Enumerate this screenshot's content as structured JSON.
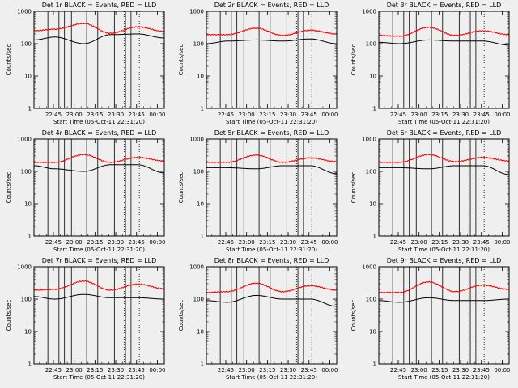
{
  "chart_data": [
    {
      "type": "line",
      "title": "Det 1r  BLACK = Events, RED = LLD",
      "ylabel": "Counts/sec",
      "xlabel": "Start Time (05-Oct-11 22:31:20)",
      "x_ticks": [
        "22:45",
        "23:00",
        "23:15",
        "23:30",
        "23:45",
        "00:00"
      ],
      "y_ticks": [
        "1",
        "10",
        "100",
        "1000"
      ],
      "ylim": [
        1,
        1000
      ],
      "y_scale": "log",
      "series": [
        {
          "name": "Events",
          "color": "#000000",
          "level": [
            130,
            160,
            100,
            190,
            200,
            150
          ]
        },
        {
          "name": "LLD",
          "color": "#ff0000",
          "level": [
            250,
            280,
            420,
            210,
            330,
            240
          ]
        }
      ]
    },
    {
      "type": "line",
      "title": "Det 2r  BLACK = Events, RED = LLD",
      "ylabel": "Counts/sec",
      "xlabel": "Start Time (05-Oct-11 22:31:20)",
      "x_ticks": [
        "22:45",
        "23:00",
        "23:15",
        "23:30",
        "23:45",
        "00:00"
      ],
      "y_ticks": [
        "1",
        "10",
        "100",
        "1000"
      ],
      "ylim": [
        1,
        1000
      ],
      "y_scale": "log",
      "series": [
        {
          "name": "Events",
          "color": "#000000",
          "level": [
            100,
            120,
            130,
            120,
            140,
            100
          ]
        },
        {
          "name": "LLD",
          "color": "#ff0000",
          "level": [
            190,
            190,
            300,
            180,
            260,
            200
          ]
        }
      ]
    },
    {
      "type": "line",
      "title": "Det 3r  BLACK = Events, RED = LLD",
      "ylabel": "Counts/sec",
      "xlabel": "Start Time (05-Oct-11 22:31:20)",
      "x_ticks": [
        "22:45",
        "23:00",
        "23:15",
        "23:30",
        "23:45",
        "00:00"
      ],
      "y_ticks": [
        "1",
        "10",
        "100",
        "1000"
      ],
      "ylim": [
        1,
        1000
      ],
      "y_scale": "log",
      "series": [
        {
          "name": "Events",
          "color": "#000000",
          "level": [
            110,
            100,
            130,
            120,
            120,
            90
          ]
        },
        {
          "name": "LLD",
          "color": "#ff0000",
          "level": [
            180,
            170,
            320,
            180,
            250,
            190
          ]
        }
      ]
    },
    {
      "type": "line",
      "title": "Det 4r  BLACK = Events, RED = LLD",
      "ylabel": "Counts/sec",
      "xlabel": "Start Time (05-Oct-11 22:31:20)",
      "x_ticks": [
        "22:45",
        "23:00",
        "23:15",
        "23:30",
        "23:45",
        "00:00"
      ],
      "y_ticks": [
        "1",
        "10",
        "100",
        "1000"
      ],
      "ylim": [
        1,
        1000
      ],
      "y_scale": "log",
      "series": [
        {
          "name": "Events",
          "color": "#000000",
          "level": [
            150,
            120,
            100,
            160,
            160,
            90
          ]
        },
        {
          "name": "LLD",
          "color": "#ff0000",
          "level": [
            190,
            190,
            330,
            190,
            270,
            210
          ]
        }
      ]
    },
    {
      "type": "line",
      "title": "Det 5r  BLACK = Events, RED = LLD",
      "ylabel": "Counts/sec",
      "xlabel": "Start Time (05-Oct-11 22:31:20)",
      "x_ticks": [
        "22:45",
        "23:00",
        "23:15",
        "23:30",
        "23:45",
        "00:00"
      ],
      "y_ticks": [
        "1",
        "10",
        "100",
        "1000"
      ],
      "ylim": [
        1,
        1000
      ],
      "y_scale": "log",
      "series": [
        {
          "name": "Events",
          "color": "#000000",
          "level": [
            130,
            130,
            120,
            150,
            150,
            85
          ]
        },
        {
          "name": "LLD",
          "color": "#ff0000",
          "level": [
            190,
            190,
            320,
            190,
            260,
            200
          ]
        }
      ]
    },
    {
      "type": "line",
      "title": "Det 6r  BLACK = Events, RED = LLD",
      "ylabel": "Counts/sec",
      "xlabel": "Start Time (05-Oct-11 22:31:20)",
      "x_ticks": [
        "22:45",
        "23:00",
        "23:15",
        "23:30",
        "23:45",
        "00:00"
      ],
      "y_ticks": [
        "1",
        "10",
        "100",
        "1000"
      ],
      "ylim": [
        1,
        1000
      ],
      "y_scale": "log",
      "series": [
        {
          "name": "Events",
          "color": "#000000",
          "level": [
            130,
            130,
            120,
            150,
            150,
            80
          ]
        },
        {
          "name": "LLD",
          "color": "#ff0000",
          "level": [
            190,
            190,
            330,
            200,
            270,
            210
          ]
        }
      ]
    },
    {
      "type": "line",
      "title": "Det 7r  BLACK = Events, RED = LLD",
      "ylabel": "Counts/sec",
      "xlabel": "Start Time (05-Oct-11 22:31:20)",
      "x_ticks": [
        "22:45",
        "23:00",
        "23:15",
        "23:30",
        "23:45",
        "00:00"
      ],
      "y_ticks": [
        "1",
        "10",
        "100",
        "1000"
      ],
      "ylim": [
        1,
        1000
      ],
      "y_scale": "log",
      "series": [
        {
          "name": "Events",
          "color": "#000000",
          "level": [
            120,
            100,
            140,
            110,
            110,
            100
          ]
        },
        {
          "name": "LLD",
          "color": "#ff0000",
          "level": [
            190,
            200,
            360,
            190,
            290,
            210
          ]
        }
      ]
    },
    {
      "type": "line",
      "title": "Det 8r  BLACK = Events, RED = LLD",
      "ylabel": "Counts/sec",
      "xlabel": "Start Time (05-Oct-11 22:31:20)",
      "x_ticks": [
        "22:45",
        "23:00",
        "23:15",
        "23:30",
        "23:45",
        "00:00"
      ],
      "y_ticks": [
        "1",
        "10",
        "100",
        "1000"
      ],
      "ylim": [
        1,
        1000
      ],
      "y_scale": "log",
      "series": [
        {
          "name": "Events",
          "color": "#000000",
          "level": [
            90,
            80,
            130,
            100,
            100,
            60
          ]
        },
        {
          "name": "LLD",
          "color": "#ff0000",
          "level": [
            160,
            170,
            310,
            170,
            260,
            190
          ]
        }
      ]
    },
    {
      "type": "line",
      "title": "Det 9r  BLACK = Events, RED = LLD",
      "ylabel": "Counts/sec",
      "xlabel": "Start Time (05-Oct-11 22:31:20)",
      "x_ticks": [
        "22:45",
        "23:00",
        "23:15",
        "23:30",
        "23:45",
        "00:00"
      ],
      "y_ticks": [
        "1",
        "10",
        "100",
        "1000"
      ],
      "ylim": [
        1,
        1000
      ],
      "y_scale": "log",
      "series": [
        {
          "name": "Events",
          "color": "#000000",
          "level": [
            90,
            80,
            110,
            90,
            90,
            100
          ]
        },
        {
          "name": "LLD",
          "color": "#ff0000",
          "level": [
            160,
            160,
            340,
            170,
            270,
            200
          ]
        }
      ]
    }
  ]
}
